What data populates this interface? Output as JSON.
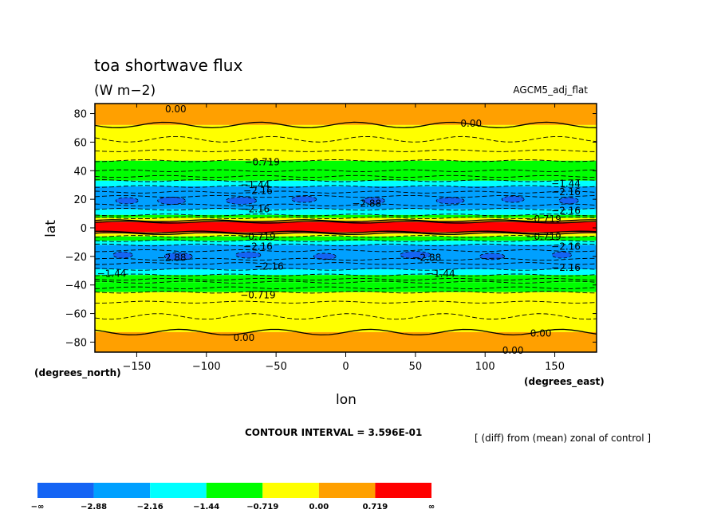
{
  "chart_data": {
    "type": "heatmap",
    "title": "toa shortwave flux",
    "units": "(W m−2)",
    "model_label": "AGCM5_adj_flat",
    "xlabel": "lon",
    "ylabel": "lat",
    "x_unit_label": "(degrees_east)",
    "y_unit_label": "(degrees_north)",
    "xlim": [
      -180,
      180
    ],
    "ylim": [
      -87,
      87
    ],
    "x_ticks": [
      -150,
      -100,
      -50,
      0,
      50,
      100,
      150
    ],
    "y_ticks": [
      -80,
      -60,
      -40,
      -20,
      0,
      20,
      40,
      60,
      80
    ],
    "x_tick_labels": [
      "−150",
      "−100",
      "−50",
      "0",
      "50",
      "100",
      "150"
    ],
    "y_tick_labels": [
      "−80",
      "−60",
      "−40",
      "−20",
      "0",
      "20",
      "40",
      "60",
      "80"
    ],
    "contour_interval_text": "CONTOUR INTERVAL = 3.596E-01",
    "footnote": "[ (diff) from (mean) zonal of control ]",
    "legend": {
      "placement": "bottom-left",
      "colors": [
        "#1464f4",
        "#00a0ff",
        "#00ffff",
        "#00ff00",
        "#ffff00",
        "#ffa000",
        "#ff0000"
      ],
      "labels": [
        "−∞",
        "−2.88",
        "−2.16",
        "−1.44",
        "−0.719",
        "0.00",
        "0.719",
        "∞"
      ]
    },
    "zonal_bands": [
      {
        "lat_min": 72,
        "lat_max": 87,
        "class": 5
      },
      {
        "lat_min": 47,
        "lat_max": 72,
        "class": 4
      },
      {
        "lat_min": 33,
        "lat_max": 47,
        "class": 3
      },
      {
        "lat_min": 29,
        "lat_max": 33,
        "class": 2
      },
      {
        "lat_min": 13,
        "lat_max": 29,
        "class": 1
      },
      {
        "lat_min": 9,
        "lat_max": 13,
        "class": 2
      },
      {
        "lat_min": 7,
        "lat_max": 9,
        "class": 3
      },
      {
        "lat_min": 5,
        "lat_max": 7,
        "class": 4
      },
      {
        "lat_min": 4,
        "lat_max": 5,
        "class": 5
      },
      {
        "lat_min": -3,
        "lat_max": 4,
        "class": 6
      },
      {
        "lat_min": -4,
        "lat_max": -3,
        "class": 5
      },
      {
        "lat_min": -6,
        "lat_max": -4,
        "class": 4
      },
      {
        "lat_min": -9,
        "lat_max": -6,
        "class": 3
      },
      {
        "lat_min": -12,
        "lat_max": -9,
        "class": 2
      },
      {
        "lat_min": -29,
        "lat_max": -12,
        "class": 1
      },
      {
        "lat_min": -33,
        "lat_max": -29,
        "class": 2
      },
      {
        "lat_min": -38,
        "lat_max": -33,
        "class": 3
      },
      {
        "lat_min": -45,
        "lat_max": -38,
        "class": 3
      },
      {
        "lat_min": -73,
        "lat_max": -45,
        "class": 4
      },
      {
        "lat_min": -87,
        "lat_max": -73,
        "class": 5
      }
    ],
    "blue_patches": [
      {
        "lon": -157,
        "lat": 19,
        "w": 16,
        "h": 2.2
      },
      {
        "lon": -125,
        "lat": 19,
        "w": 20,
        "h": 2.5
      },
      {
        "lon": -75,
        "lat": 19,
        "w": 22,
        "h": 2.5
      },
      {
        "lon": -30,
        "lat": 20,
        "w": 18,
        "h": 2.2
      },
      {
        "lon": 20,
        "lat": 19,
        "w": 16,
        "h": 2.2
      },
      {
        "lon": 75,
        "lat": 19,
        "w": 20,
        "h": 2.2
      },
      {
        "lon": 120,
        "lat": 20,
        "w": 16,
        "h": 2.2
      },
      {
        "lon": 160,
        "lat": 19,
        "w": 14,
        "h": 2.2
      },
      {
        "lon": -160,
        "lat": -19,
        "w": 14,
        "h": 2.2
      },
      {
        "lon": -120,
        "lat": -20,
        "w": 20,
        "h": 2.5
      },
      {
        "lon": -70,
        "lat": -19,
        "w": 18,
        "h": 2.2
      },
      {
        "lon": -15,
        "lat": -20,
        "w": 16,
        "h": 2.2
      },
      {
        "lon": 50,
        "lat": -19,
        "w": 22,
        "h": 2.5
      },
      {
        "lon": 105,
        "lat": -20,
        "w": 18,
        "h": 2.2
      },
      {
        "lon": 155,
        "lat": -19,
        "w": 14,
        "h": 2.2
      }
    ],
    "contour_labels": [
      {
        "text": "0.00",
        "lon": -122,
        "lat": 83
      },
      {
        "text": "0.00",
        "lon": 90,
        "lat": 73
      },
      {
        "text": "−0.719",
        "lon": -60,
        "lat": 46
      },
      {
        "text": "−1.44",
        "lon": -65,
        "lat": 30
      },
      {
        "text": "−2.16",
        "lon": -63,
        "lat": 26
      },
      {
        "text": "−2.88",
        "lon": 15,
        "lat": 17
      },
      {
        "text": "−1.44",
        "lon": 158,
        "lat": 31
      },
      {
        "text": "−2.16",
        "lon": 158,
        "lat": 25
      },
      {
        "text": "−2.16",
        "lon": -65,
        "lat": 13
      },
      {
        "text": "−2.16",
        "lon": 158,
        "lat": 12
      },
      {
        "text": "−0.719",
        "lon": 142,
        "lat": 6
      },
      {
        "text": "−0.719",
        "lon": -63,
        "lat": -6
      },
      {
        "text": "−0.719",
        "lon": 142,
        "lat": -6
      },
      {
        "text": "−2.16",
        "lon": -63,
        "lat": -13
      },
      {
        "text": "−2.16",
        "lon": 158,
        "lat": -13
      },
      {
        "text": "−2.88",
        "lon": -125,
        "lat": -21
      },
      {
        "text": "−2.88",
        "lon": 58,
        "lat": -21
      },
      {
        "text": "−2.16",
        "lon": -55,
        "lat": -27
      },
      {
        "text": "−2.16",
        "lon": 158,
        "lat": -28
      },
      {
        "text": "−1.44",
        "lon": -168,
        "lat": -32
      },
      {
        "text": "−1.44",
        "lon": 68,
        "lat": -32
      },
      {
        "text": "−0.719",
        "lon": -63,
        "lat": -47
      },
      {
        "text": "0.00",
        "lon": -73,
        "lat": -77
      },
      {
        "text": "0.00",
        "lon": 140,
        "lat": -74
      },
      {
        "text": "0.00",
        "lon": 120,
        "lat": -86
      }
    ]
  }
}
